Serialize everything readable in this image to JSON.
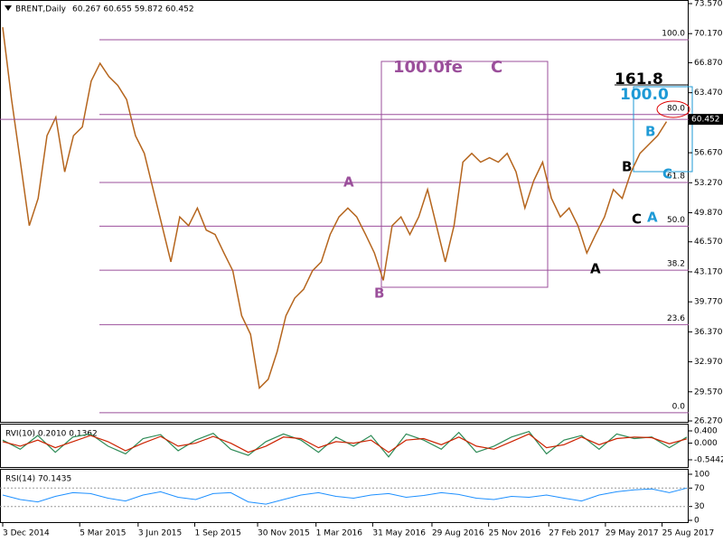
{
  "chart_data": {
    "type": "line",
    "title": "BRENT,Daily",
    "ohlc_text": "60.267 60.655 59.872 60.452",
    "current_price": 60.452,
    "series": [
      {
        "name": "BRENT",
        "color": "#b5651d",
        "values": [
          70.9,
          62.7,
          55.6,
          48.4,
          51.5,
          58.6,
          60.7,
          54.5,
          58.6,
          59.6,
          64.8,
          66.8,
          65.3,
          64.3,
          62.7,
          58.6,
          56.6,
          52.5,
          48.4,
          44.3,
          49.4,
          48.4,
          50.4,
          47.9,
          47.4,
          45.3,
          43.3,
          38.2,
          36.1,
          30.0,
          31.0,
          34.1,
          38.2,
          40.2,
          41.2,
          43.3,
          44.3,
          47.4,
          49.4,
          50.4,
          49.4,
          47.4,
          45.3,
          42.2,
          48.4,
          49.4,
          47.4,
          49.4,
          52.5,
          48.4,
          44.3,
          48.4,
          55.6,
          56.6,
          55.6,
          56.1,
          55.6,
          56.6,
          54.5,
          50.4,
          53.5,
          55.6,
          51.5,
          49.4,
          50.4,
          48.4,
          45.3,
          47.4,
          49.4,
          52.5,
          51.5,
          54.5,
          56.6,
          57.6,
          58.6,
          60.2
        ]
      }
    ],
    "ylim": [
      26.27,
      73.57
    ],
    "yticks": [
      {
        "value": 73.57,
        "label": "73.570"
      },
      {
        "value": 70.17,
        "label": "70.170"
      },
      {
        "value": 66.87,
        "label": "66.870"
      },
      {
        "value": 63.47,
        "label": "63.470"
      },
      {
        "value": 56.67,
        "label": "56.670"
      },
      {
        "value": 53.27,
        "label": "53.270"
      },
      {
        "value": 49.87,
        "label": "49.870"
      },
      {
        "value": 46.57,
        "label": "46.570"
      },
      {
        "value": 43.17,
        "label": "43.170"
      },
      {
        "value": 39.77,
        "label": "39.770"
      },
      {
        "value": 36.37,
        "label": "36.370"
      },
      {
        "value": 32.97,
        "label": "32.970"
      },
      {
        "value": 29.57,
        "label": "29.570"
      },
      {
        "value": 26.27,
        "label": "26.270"
      }
    ],
    "xlim": [
      0,
      77.3
    ],
    "xticks": [
      {
        "value": 0,
        "label": "3 Dec 2014"
      },
      {
        "value": 8.7,
        "label": "5 Mar 2015"
      },
      {
        "value": 15.3,
        "label": "3 Jun 2015"
      },
      {
        "value": 21.7,
        "label": "1 Sep 2015"
      },
      {
        "value": 28.8,
        "label": "30 Nov 2015"
      },
      {
        "value": 35.4,
        "label": "1 Mar 2016"
      },
      {
        "value": 41.8,
        "label": "31 May 2016"
      },
      {
        "value": 48.5,
        "label": "29 Aug 2016"
      },
      {
        "value": 54.9,
        "label": "25 Nov 2016"
      },
      {
        "value": 61.7,
        "label": "27 Feb 2017"
      },
      {
        "value": 68.1,
        "label": "29 May 2017"
      },
      {
        "value": 74.5,
        "label": "25 Aug 2017"
      }
    ],
    "fib_color": "#9b4f9b",
    "fib_levels": [
      {
        "value": 69.48,
        "label": "100.0"
      },
      {
        "value": 61.0,
        "label": "80.0"
      },
      {
        "value": 53.3,
        "label": "61.8"
      },
      {
        "value": 48.34,
        "label": "50.0"
      },
      {
        "value": 43.35,
        "label": "38.2"
      },
      {
        "value": 37.18,
        "label": "23.6"
      },
      {
        "value": 27.2,
        "label": "0.0"
      }
    ],
    "annotations": [
      {
        "text": "100.0fe",
        "color": "#9b4f9b"
      },
      {
        "text": "C",
        "color": "#9b4f9b"
      },
      {
        "text": "161.8",
        "color": "#000000"
      },
      {
        "text": "100.0",
        "color": "#1e9ad6"
      },
      {
        "text": "B",
        "color": "#1e9ad6"
      },
      {
        "text": "B",
        "color": "#000000"
      },
      {
        "text": "C",
        "color": "#1e9ad6"
      },
      {
        "text": "A",
        "color": "#9b4f9b"
      },
      {
        "text": "C",
        "color": "#000000"
      },
      {
        "text": "A",
        "color": "#1e9ad6"
      },
      {
        "text": "A",
        "color": "#000000"
      },
      {
        "text": "B",
        "color": "#9b4f9b"
      }
    ],
    "rvi": {
      "label": "RVI(10) 0.2010 0.1362",
      "ylim": [
        -0.5442,
        0.4
      ],
      "yticks": [
        {
          "value": 0.4,
          "label": "0.400"
        },
        {
          "value": 0,
          "label": "0.000"
        },
        -0.5442
      ],
      "series": [
        {
          "color": "#2e8b57",
          "values": [
            0.1,
            -0.2,
            0.25,
            -0.3,
            0.2,
            0.3,
            -0.1,
            -0.35,
            0.15,
            0.28,
            -0.25,
            0.1,
            0.32,
            -0.2,
            -0.4,
            0.05,
            0.3,
            0.1,
            -0.3,
            0.2,
            -0.1,
            0.25,
            -0.45,
            0.3,
            0.1,
            -0.2,
            0.35,
            -0.3,
            -0.1,
            0.2,
            0.38,
            -0.35,
            0.1,
            0.25,
            -0.2,
            0.3,
            0.15,
            0.2,
            -0.15,
            0.2
          ]
        },
        {
          "color": "#cc2200",
          "values": [
            0.05,
            -0.1,
            0.1,
            -0.15,
            0.05,
            0.25,
            0.05,
            -0.25,
            0,
            0.22,
            -0.1,
            0,
            0.22,
            0,
            -0.3,
            -0.1,
            0.2,
            0.15,
            -0.15,
            0.05,
            0,
            0.1,
            -0.3,
            0.1,
            0.15,
            -0.05,
            0.2,
            -0.1,
            -0.2,
            0.05,
            0.3,
            -0.15,
            -0.05,
            0.2,
            -0.05,
            0.15,
            0.2,
            0.18,
            -0.02,
            0.14
          ]
        }
      ]
    },
    "rsi": {
      "label": "RSI(14) 70.1435",
      "ylim": [
        0,
        100
      ],
      "yticks": [
        100,
        70,
        30,
        0
      ],
      "color": "#1e90ff",
      "values": [
        55,
        45,
        40,
        52,
        60,
        58,
        48,
        42,
        55,
        62,
        50,
        45,
        58,
        60,
        40,
        35,
        45,
        55,
        60,
        52,
        48,
        55,
        58,
        50,
        54,
        60,
        56,
        48,
        45,
        52,
        50,
        55,
        48,
        42,
        55,
        62,
        66,
        68,
        60,
        70
      ]
    }
  }
}
